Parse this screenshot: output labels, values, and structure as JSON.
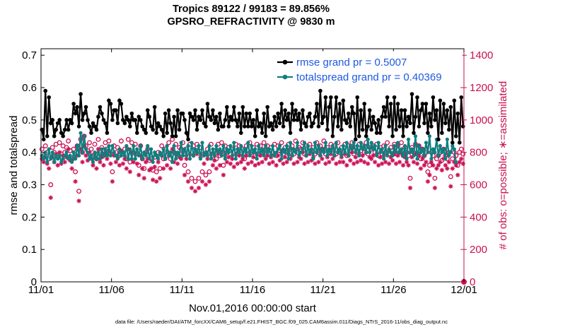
{
  "chart_data": {
    "type": "line",
    "title_line1": "Tropics 89122 / 99183 = 89.856%",
    "title_line2": "GPSRO_REFRACTIVITY @ 9830 m",
    "xlabel": "Nov.01,2016 00:00:00 start",
    "ylabel_left": "rmse and totalspread",
    "ylabel_right": "# of obs: o=possible; ∗=assimilated",
    "x_tick_labels": [
      "11/01",
      "11/06",
      "11/11",
      "11/16",
      "11/21",
      "11/26",
      "12/01"
    ],
    "x_tick_days": [
      0,
      5,
      10,
      15,
      20,
      25,
      30
    ],
    "xlim": [
      0,
      30
    ],
    "ylim_left": [
      0,
      0.72
    ],
    "yticks_left": [
      "0",
      "0.1",
      "0.2",
      "0.3",
      "0.4",
      "0.5",
      "0.6",
      "0.7"
    ],
    "ylim_right": [
      0,
      1440
    ],
    "yticks_right": [
      "0",
      "200",
      "400",
      "600",
      "800",
      "1000",
      "1200",
      "1400"
    ],
    "colors": {
      "rmse": "#000000",
      "spread": "#0f7f7f",
      "obs": "#cc1155",
      "legend_text": "#1e5ae0",
      "right_axis": "#c8104f"
    },
    "series": [
      {
        "name": "rmse grand pr = 0.5007",
        "axis": "left",
        "values": [
          0.47,
          0.44,
          0.59,
          0.45,
          0.57,
          0.49,
          0.5,
          0.45,
          0.47,
          0.49,
          0.5,
          0.46,
          0.45,
          0.47,
          0.5,
          0.47,
          0.5,
          0.49,
          0.55,
          0.52,
          0.54,
          0.48,
          0.58,
          0.5,
          0.52,
          0.54,
          0.5,
          0.48,
          0.46,
          0.49,
          0.48,
          0.47,
          0.51,
          0.54,
          0.52,
          0.5,
          0.49,
          0.46,
          0.56,
          0.55,
          0.5,
          0.53,
          0.53,
          0.49,
          0.56,
          0.55,
          0.5,
          0.49,
          0.51,
          0.5,
          0.48,
          0.52,
          0.5,
          0.5,
          0.46,
          0.51,
          0.5,
          0.48,
          0.47,
          0.46,
          0.53,
          0.51,
          0.48,
          0.47,
          0.54,
          0.46,
          0.49,
          0.48,
          0.47,
          0.45,
          0.52,
          0.46,
          0.53,
          0.49,
          0.45,
          0.51,
          0.45,
          0.53,
          0.47,
          0.52,
          0.52,
          0.5,
          0.46,
          0.44,
          0.52,
          0.51,
          0.5,
          0.53,
          0.47,
          0.51,
          0.5,
          0.53,
          0.49,
          0.48,
          0.55,
          0.51,
          0.5,
          0.53,
          0.49,
          0.51,
          0.47,
          0.52,
          0.48,
          0.48,
          0.5,
          0.54,
          0.48,
          0.51,
          0.5,
          0.54,
          0.5,
          0.48,
          0.52,
          0.46,
          0.54,
          0.48,
          0.52,
          0.48,
          0.52,
          0.48,
          0.5,
          0.45,
          0.53,
          0.48,
          0.49,
          0.46,
          0.52,
          0.45,
          0.54,
          0.48,
          0.49,
          0.47,
          0.51,
          0.48,
          0.52,
          0.49,
          0.55,
          0.48,
          0.53,
          0.5,
          0.52,
          0.46,
          0.55,
          0.5,
          0.53,
          0.5,
          0.52,
          0.47,
          0.53,
          0.49,
          0.48,
          0.51,
          0.52,
          0.48,
          0.49,
          0.51,
          0.55,
          0.48,
          0.59,
          0.49,
          0.51,
          0.57,
          0.47,
          0.54,
          0.57,
          0.45,
          0.51,
          0.57,
          0.48,
          0.55,
          0.47,
          0.56,
          0.5,
          0.49,
          0.52,
          0.48,
          0.54,
          0.52,
          0.44,
          0.57,
          0.45,
          0.53,
          0.47,
          0.55,
          0.45,
          0.48,
          0.53,
          0.47,
          0.51,
          0.49,
          0.46,
          0.5,
          0.46,
          0.51,
          0.54,
          0.51,
          0.57,
          0.48,
          0.55,
          0.45,
          0.57,
          0.47,
          0.55,
          0.48,
          0.53,
          0.45,
          0.53,
          0.48,
          0.51,
          0.49,
          0.58,
          0.46,
          0.51,
          0.57,
          0.48,
          0.53,
          0.55,
          0.49,
          0.55,
          0.46,
          0.52,
          0.48,
          0.57,
          0.5,
          0.53,
          0.44,
          0.56,
          0.46,
          0.55,
          0.49,
          0.53,
          0.47,
          0.54,
          0.43,
          0.56,
          0.45,
          0.52,
          0.43,
          0.57,
          0.48
        ]
      },
      {
        "name": "totalspread grand pr = 0.40369",
        "axis": "left",
        "values": [
          0.39,
          0.38,
          0.4,
          0.37,
          0.41,
          0.38,
          0.4,
          0.37,
          0.39,
          0.38,
          0.39,
          0.37,
          0.38,
          0.39,
          0.4,
          0.38,
          0.39,
          0.37,
          0.4,
          0.38,
          0.42,
          0.39,
          0.46,
          0.4,
          0.45,
          0.41,
          0.4,
          0.38,
          0.39,
          0.37,
          0.4,
          0.38,
          0.4,
          0.38,
          0.41,
          0.39,
          0.41,
          0.39,
          0.42,
          0.39,
          0.42,
          0.4,
          0.39,
          0.38,
          0.41,
          0.39,
          0.4,
          0.39,
          0.42,
          0.38,
          0.41,
          0.38,
          0.42,
          0.38,
          0.41,
          0.39,
          0.42,
          0.38,
          0.4,
          0.39,
          0.42,
          0.38,
          0.41,
          0.37,
          0.4,
          0.39,
          0.38,
          0.4,
          0.39,
          0.41,
          0.38,
          0.42,
          0.39,
          0.4,
          0.37,
          0.42,
          0.38,
          0.4,
          0.39,
          0.43,
          0.39,
          0.41,
          0.39,
          0.42,
          0.38,
          0.43,
          0.39,
          0.41,
          0.4,
          0.42,
          0.38,
          0.43,
          0.39,
          0.4,
          0.39,
          0.42,
          0.38,
          0.41,
          0.39,
          0.42,
          0.4,
          0.41,
          0.39,
          0.42,
          0.38,
          0.41,
          0.4,
          0.42,
          0.39,
          0.43,
          0.38,
          0.41,
          0.4,
          0.42,
          0.39,
          0.41,
          0.4,
          0.43,
          0.39,
          0.42,
          0.4,
          0.41,
          0.38,
          0.42,
          0.4,
          0.41,
          0.39,
          0.42,
          0.4,
          0.41,
          0.39,
          0.42,
          0.39,
          0.4,
          0.41,
          0.42,
          0.38,
          0.41,
          0.4,
          0.42,
          0.38,
          0.43,
          0.39,
          0.41,
          0.4,
          0.43,
          0.39,
          0.4,
          0.41,
          0.43,
          0.39,
          0.42,
          0.4,
          0.41,
          0.38,
          0.43,
          0.4,
          0.42,
          0.39,
          0.41,
          0.4,
          0.43,
          0.39,
          0.41,
          0.4,
          0.42,
          0.39,
          0.43,
          0.4,
          0.41,
          0.39,
          0.42,
          0.4,
          0.43,
          0.39,
          0.42,
          0.41,
          0.43,
          0.4,
          0.42,
          0.39,
          0.43,
          0.41,
          0.42,
          0.4,
          0.44,
          0.4,
          0.43,
          0.41,
          0.42,
          0.39,
          0.43,
          0.4,
          0.41,
          0.38,
          0.42,
          0.39,
          0.41,
          0.4,
          0.39,
          0.42,
          0.4,
          0.43,
          0.4,
          0.41,
          0.39,
          0.42,
          0.38,
          0.44,
          0.4,
          0.41,
          0.39,
          0.45,
          0.38,
          0.42,
          0.4,
          0.41,
          0.39,
          0.43,
          0.4,
          0.45,
          0.38,
          0.41,
          0.4,
          0.44,
          0.39,
          0.42,
          0.4,
          0.41,
          0.38,
          0.44,
          0.39,
          0.4,
          0.42,
          0.41,
          0.37
        ]
      },
      {
        "name": "possible",
        "axis": "right",
        "values": [
          820,
          780,
          840,
          800,
          760,
          600,
          830,
          800,
          850,
          780,
          860,
          790,
          840,
          800,
          830,
          870,
          810,
          760,
          820,
          680,
          840,
          560,
          880,
          800,
          900,
          840,
          810,
          860,
          820,
          780,
          850,
          760,
          880,
          800,
          830,
          780,
          860,
          820,
          870,
          790,
          680,
          840,
          800,
          830,
          780,
          870,
          790,
          820,
          760,
          880,
          740,
          860,
          800,
          850,
          790,
          720,
          840,
          760,
          700,
          800,
          820,
          750,
          760,
          690,
          770,
          680,
          800,
          700,
          840,
          760,
          820,
          780,
          860,
          760,
          880,
          800,
          850,
          790,
          830,
          820,
          860,
          720,
          820,
          680,
          850,
          640,
          840,
          620,
          850,
          640,
          830,
          680,
          790,
          660,
          820,
          680,
          850,
          780,
          810,
          760,
          850,
          780,
          860,
          720,
          840,
          800,
          830,
          790,
          820,
          770,
          850,
          790,
          840,
          800,
          820,
          760,
          840,
          790,
          860,
          800,
          830,
          780,
          850,
          790,
          840,
          800,
          860,
          820,
          840,
          790,
          830,
          800,
          850,
          780,
          840,
          810,
          860,
          790,
          830,
          800,
          850,
          820,
          840,
          790,
          870,
          800,
          830,
          820,
          860,
          790,
          840,
          800,
          850,
          810,
          830,
          790,
          860,
          800,
          840,
          820,
          870,
          790,
          830,
          800,
          850,
          820,
          840,
          790,
          860,
          800,
          830,
          800,
          850,
          780,
          840,
          810,
          860,
          790,
          830,
          800,
          850,
          810,
          840,
          800,
          860,
          790,
          830,
          820,
          840,
          800,
          850,
          780,
          830,
          790,
          840,
          800,
          860,
          790,
          830,
          810,
          850,
          790,
          840,
          800,
          860,
          780,
          830,
          800,
          780,
          640,
          830,
          800,
          850,
          790,
          840,
          760,
          820,
          780,
          800,
          680,
          720,
          800,
          780,
          640,
          760,
          780,
          800,
          750,
          820,
          780,
          760,
          800,
          650,
          760,
          800,
          780,
          720,
          800,
          820,
          790
        ]
      },
      {
        "name": "assimilated",
        "axis": "right",
        "values": [
          760,
          740,
          770,
          730,
          700,
          520,
          770,
          740,
          790,
          720,
          800,
          730,
          780,
          740,
          770,
          820,
          750,
          700,
          760,
          620,
          780,
          500,
          820,
          740,
          840,
          780,
          750,
          800,
          760,
          720,
          790,
          700,
          820,
          740,
          770,
          720,
          800,
          760,
          810,
          730,
          620,
          780,
          740,
          770,
          720,
          810,
          730,
          760,
          700,
          820,
          680,
          800,
          740,
          790,
          730,
          660,
          780,
          700,
          640,
          740,
          760,
          690,
          700,
          630,
          710,
          620,
          740,
          640,
          780,
          700,
          760,
          720,
          800,
          700,
          820,
          740,
          790,
          730,
          770,
          760,
          800,
          660,
          760,
          620,
          790,
          580,
          780,
          560,
          790,
          580,
          770,
          620,
          730,
          600,
          760,
          620,
          790,
          720,
          750,
          700,
          790,
          720,
          800,
          660,
          780,
          740,
          770,
          730,
          760,
          710,
          790,
          730,
          780,
          740,
          760,
          700,
          780,
          730,
          800,
          740,
          770,
          720,
          790,
          730,
          780,
          740,
          800,
          760,
          780,
          730,
          770,
          740,
          790,
          720,
          780,
          750,
          800,
          730,
          770,
          740,
          790,
          760,
          780,
          730,
          810,
          740,
          770,
          760,
          800,
          730,
          780,
          740,
          790,
          750,
          770,
          730,
          800,
          740,
          780,
          760,
          810,
          730,
          770,
          740,
          790,
          760,
          780,
          730,
          800,
          740,
          770,
          740,
          790,
          720,
          780,
          750,
          800,
          730,
          770,
          740,
          790,
          750,
          780,
          740,
          800,
          730,
          770,
          760,
          780,
          740,
          790,
          720,
          770,
          730,
          780,
          740,
          800,
          730,
          770,
          750,
          790,
          730,
          780,
          740,
          800,
          720,
          770,
          740,
          720,
          580,
          770,
          740,
          790,
          730,
          780,
          700,
          760,
          720,
          740,
          620,
          660,
          740,
          720,
          580,
          700,
          720,
          740,
          690,
          760,
          720,
          700,
          740,
          590,
          700,
          740,
          720,
          660,
          740,
          760,
          730
        ]
      }
    ],
    "legend": [
      {
        "label": "rmse grand pr = 0.5007",
        "series": 0
      },
      {
        "label": "totalspread grand pr = 0.40369",
        "series": 1
      }
    ],
    "footer": "data file: /Users/raeder/DAI/ATM_forcXX/CAM6_setup/f.e21.FHIST_BGC.f09_025.CAM6assim.011/Diags_NTrS_2016-11/obs_diag_output.nc"
  }
}
